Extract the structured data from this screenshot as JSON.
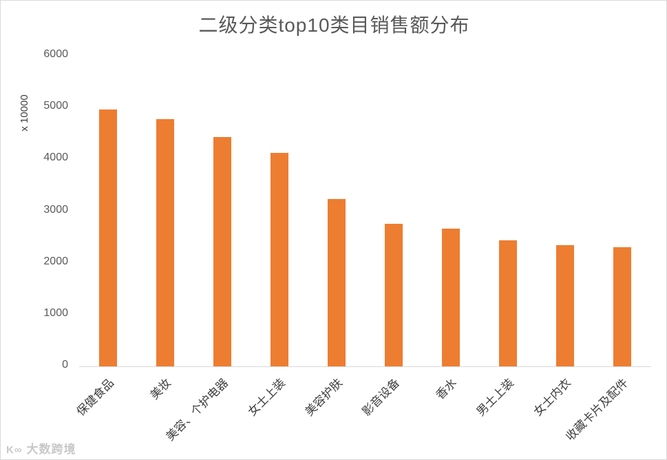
{
  "chart_data": {
    "type": "bar",
    "title": "二级分类top10类目销售额分布",
    "xlabel": "",
    "ylabel": "x 10000",
    "ylim": [
      0,
      6000
    ],
    "yticks": [
      0,
      1000,
      2000,
      3000,
      4000,
      5000,
      6000
    ],
    "grid": false,
    "legend": null,
    "bar_color": "#ed7d31",
    "categories": [
      "保健食品",
      "美妆",
      "美容、个护电器",
      "女士上装",
      "美容护肤",
      "影音设备",
      "香水",
      "男士上装",
      "女士内衣",
      "收藏卡片及配件"
    ],
    "values": [
      4960,
      4775,
      4430,
      4125,
      3230,
      2755,
      2660,
      2435,
      2340,
      2300
    ]
  },
  "watermark": {
    "logo": "K∞",
    "text": "大数跨境"
  }
}
